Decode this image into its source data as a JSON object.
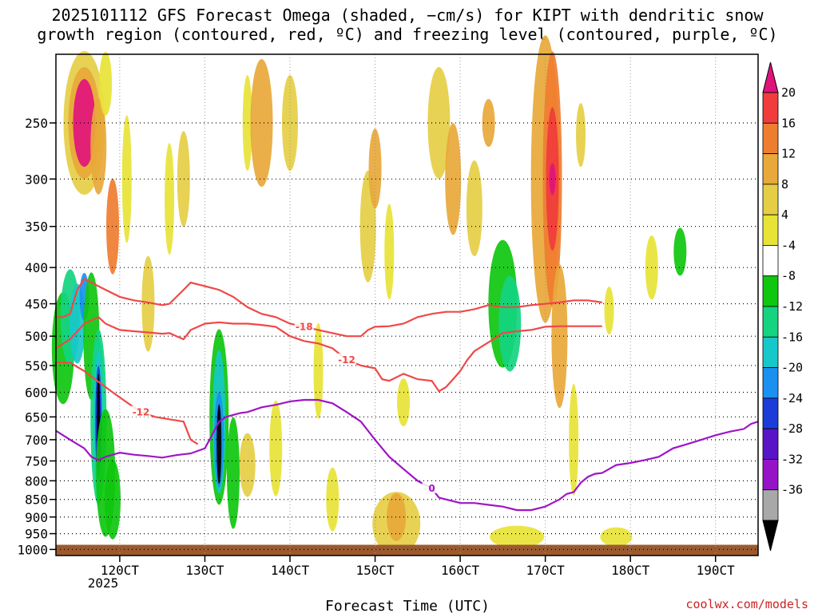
{
  "chart_data": {
    "type": "heatmap",
    "title_lines": [
      "2025101112 GFS Forecast Omega (shaded, −cm/s) for KIPT with dendritic snow",
      "growth region (contoured, red, ºC) and freezing level (contoured, purple, ºC)"
    ],
    "xlabel": "Forecast Time (UTC)",
    "credit": "coolwx.com/models",
    "x_ticks": [
      "120CT",
      "130CT",
      "140CT",
      "150CT",
      "160CT",
      "170CT",
      "180CT",
      "190CT"
    ],
    "x_subtitle": "2025",
    "x_hours": [
      -18,
      180
    ],
    "y_ticks": [
      "250",
      "300",
      "350",
      "400",
      "450",
      "500",
      "550",
      "600",
      "650",
      "700",
      "750",
      "800",
      "850",
      "900",
      "950",
      "1000"
    ],
    "y_range_hpa": [
      200,
      1020
    ],
    "grid": true,
    "colorbar": {
      "labels": [
        "20",
        "16",
        "12",
        "8",
        "4",
        "-4",
        "-8",
        "-12",
        "-16",
        "-20",
        "-24",
        "-28",
        "-32",
        "-36"
      ],
      "colors": [
        "#e0137c",
        "#f03c3c",
        "#ef7d30",
        "#e8a83a",
        "#e5ce45",
        "#e8e337",
        "#ffffff",
        "#0ec70e",
        "#14d480",
        "#17c8c8",
        "#1a90f0",
        "#1b3cd8",
        "#5a14c8",
        "#9614c8",
        "#a8a8a8",
        "#000000"
      ]
    },
    "surface_color": "#9b5a2e",
    "contours": [
      {
        "label": "-18",
        "color": "#f04848",
        "points": [
          [
            -18,
            470
          ],
          [
            -16,
            470
          ],
          [
            -14,
            465
          ],
          [
            -12,
            430
          ],
          [
            -10,
            415
          ],
          [
            -8,
            420
          ],
          [
            -4,
            430
          ],
          [
            0,
            440
          ],
          [
            4,
            445
          ],
          [
            8,
            448
          ],
          [
            12,
            452
          ],
          [
            14,
            450
          ],
          [
            16,
            440
          ],
          [
            18,
            430
          ],
          [
            20,
            420
          ],
          [
            24,
            425
          ],
          [
            28,
            430
          ],
          [
            32,
            440
          ],
          [
            36,
            455
          ],
          [
            40,
            465
          ],
          [
            44,
            470
          ],
          [
            48,
            480
          ],
          [
            52,
            485
          ],
          [
            56,
            490
          ],
          [
            60,
            495
          ],
          [
            64,
            500
          ],
          [
            68,
            500
          ],
          [
            70,
            490
          ],
          [
            72,
            485
          ],
          [
            76,
            484
          ],
          [
            80,
            480
          ],
          [
            84,
            470
          ],
          [
            88,
            465
          ],
          [
            92,
            462
          ],
          [
            96,
            462
          ],
          [
            100,
            458
          ],
          [
            104,
            452
          ],
          [
            108,
            455
          ],
          [
            112,
            455
          ],
          [
            116,
            452
          ],
          [
            120,
            450
          ],
          [
            124,
            448
          ],
          [
            128,
            445
          ],
          [
            132,
            445
          ],
          [
            136,
            448
          ]
        ]
      },
      {
        "label": "-12",
        "color": "#f04848",
        "points": [
          [
            -18,
            520
          ],
          [
            -14,
            505
          ],
          [
            -10,
            480
          ],
          [
            -6,
            470
          ],
          [
            -4,
            480
          ],
          [
            0,
            490
          ],
          [
            4,
            492
          ],
          [
            8,
            494
          ],
          [
            12,
            496
          ],
          [
            14,
            495
          ],
          [
            16,
            500
          ],
          [
            18,
            505
          ],
          [
            20,
            490
          ],
          [
            24,
            480
          ],
          [
            28,
            478
          ],
          [
            32,
            480
          ],
          [
            36,
            480
          ],
          [
            40,
            482
          ],
          [
            44,
            485
          ],
          [
            48,
            500
          ],
          [
            52,
            508
          ],
          [
            56,
            512
          ],
          [
            60,
            520
          ],
          [
            64,
            540
          ],
          [
            68,
            550
          ],
          [
            72,
            555
          ],
          [
            74,
            575
          ],
          [
            76,
            578
          ],
          [
            80,
            565
          ],
          [
            84,
            575
          ],
          [
            88,
            578
          ],
          [
            90,
            598
          ],
          [
            92,
            590
          ],
          [
            94,
            575
          ],
          [
            96,
            560
          ],
          [
            98,
            540
          ],
          [
            100,
            525
          ],
          [
            104,
            510
          ],
          [
            108,
            495
          ],
          [
            112,
            492
          ],
          [
            116,
            490
          ],
          [
            120,
            485
          ],
          [
            124,
            484
          ],
          [
            128,
            484
          ],
          [
            132,
            484
          ],
          [
            136,
            484
          ]
        ]
      },
      {
        "label": "-12",
        "color": "#f04848",
        "points": [
          [
            -18,
            545
          ],
          [
            -14,
            545
          ],
          [
            -10,
            560
          ],
          [
            -6,
            580
          ],
          [
            -2,
            600
          ],
          [
            2,
            620
          ],
          [
            6,
            640
          ],
          [
            10,
            650
          ],
          [
            14,
            655
          ],
          [
            18,
            660
          ],
          [
            20,
            700
          ],
          [
            22,
            710
          ]
        ]
      },
      {
        "label": "0",
        "color": "#a014c8",
        "points": [
          [
            -18,
            680
          ],
          [
            -14,
            700
          ],
          [
            -10,
            720
          ],
          [
            -8,
            740
          ],
          [
            -6,
            748
          ],
          [
            -4,
            740
          ],
          [
            0,
            730
          ],
          [
            4,
            735
          ],
          [
            8,
            738
          ],
          [
            12,
            742
          ],
          [
            16,
            736
          ],
          [
            20,
            732
          ],
          [
            24,
            720
          ],
          [
            26,
            690
          ],
          [
            28,
            660
          ],
          [
            30,
            650
          ],
          [
            34,
            642
          ],
          [
            36,
            640
          ],
          [
            40,
            630
          ],
          [
            44,
            625
          ],
          [
            48,
            618
          ],
          [
            52,
            615
          ],
          [
            56,
            615
          ],
          [
            60,
            622
          ],
          [
            64,
            640
          ],
          [
            68,
            660
          ],
          [
            72,
            700
          ],
          [
            76,
            740
          ],
          [
            80,
            770
          ],
          [
            84,
            800
          ],
          [
            88,
            820
          ],
          [
            90,
            845
          ],
          [
            92,
            850
          ],
          [
            96,
            860
          ],
          [
            100,
            860
          ],
          [
            104,
            865
          ],
          [
            108,
            870
          ],
          [
            112,
            880
          ],
          [
            116,
            880
          ],
          [
            120,
            870
          ],
          [
            122,
            860
          ],
          [
            124,
            850
          ],
          [
            126,
            835
          ],
          [
            128,
            830
          ],
          [
            130,
            805
          ],
          [
            132,
            790
          ],
          [
            134,
            782
          ],
          [
            136,
            780
          ],
          [
            140,
            760
          ],
          [
            144,
            755
          ],
          [
            148,
            748
          ],
          [
            152,
            740
          ],
          [
            156,
            720
          ],
          [
            160,
            710
          ],
          [
            164,
            700
          ],
          [
            168,
            690
          ],
          [
            172,
            682
          ],
          [
            176,
            676
          ],
          [
            178,
            665
          ],
          [
            180,
            660
          ]
        ]
      }
    ]
  }
}
